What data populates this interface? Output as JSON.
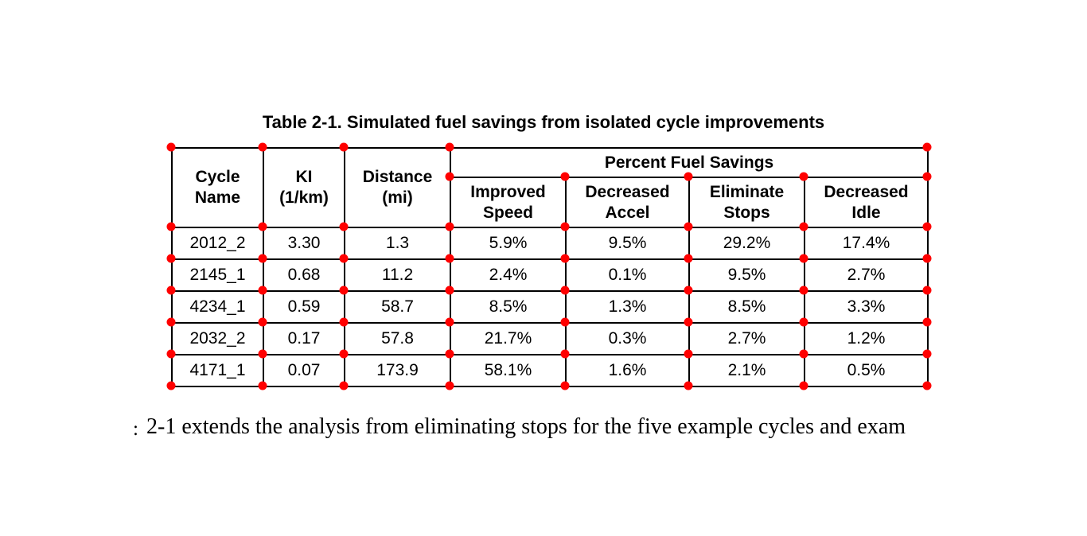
{
  "title": "Table 2-1. Simulated fuel savings from isolated cycle improvements",
  "table": {
    "header": {
      "cycle_name": "Cycle\nName",
      "ki": "KI\n(1/km)",
      "distance": "Distance\n(mi)",
      "group": "Percent Fuel Savings",
      "improved_speed": "Improved\nSpeed",
      "decreased_accel": "Decreased\nAccel",
      "eliminate_stops": "Eliminate\nStops",
      "decreased_idle": "Decreased\nIdle"
    },
    "rows": [
      {
        "name": "2012_2",
        "ki": "3.30",
        "distance": "1.3",
        "improved_speed": "5.9%",
        "decreased_accel": "9.5%",
        "eliminate_stops": "29.2%",
        "decreased_idle": "17.4%"
      },
      {
        "name": "2145_1",
        "ki": "0.68",
        "distance": "11.2",
        "improved_speed": "2.4%",
        "decreased_accel": "0.1%",
        "eliminate_stops": "9.5%",
        "decreased_idle": "2.7%"
      },
      {
        "name": "4234_1",
        "ki": "0.59",
        "distance": "58.7",
        "improved_speed": "8.5%",
        "decreased_accel": "1.3%",
        "eliminate_stops": "8.5%",
        "decreased_idle": "3.3%"
      },
      {
        "name": "2032_2",
        "ki": "0.17",
        "distance": "57.8",
        "improved_speed": "21.7%",
        "decreased_accel": "0.3%",
        "eliminate_stops": "2.7%",
        "decreased_idle": "1.2%"
      },
      {
        "name": "4171_1",
        "ki": "0.07",
        "distance": "173.9",
        "improved_speed": "58.1%",
        "decreased_accel": "1.6%",
        "eliminate_stops": "2.1%",
        "decreased_idle": "0.5%"
      }
    ]
  },
  "body_text": {
    "left_fragment": ":",
    "sentence": "2-1 extends the analysis from eliminating stops for the five example cycles and exam"
  },
  "markers": {
    "color": "#ff0000"
  }
}
